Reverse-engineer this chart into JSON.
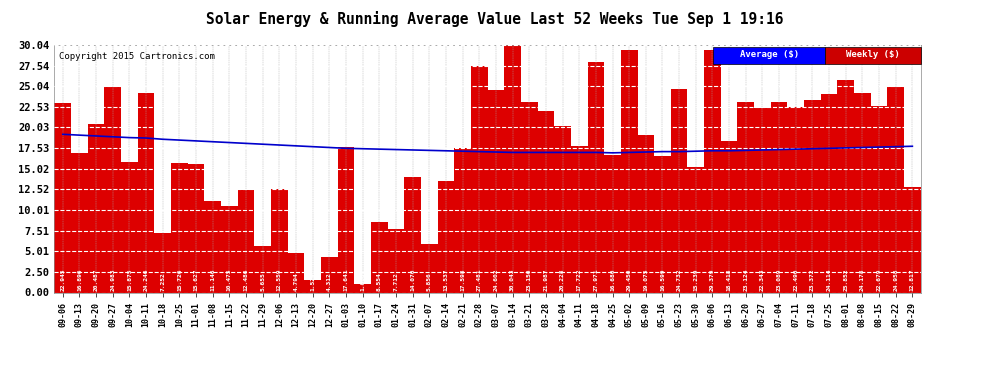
{
  "title": "Solar Energy & Running Average Value Last 52 Weeks Tue Sep 1 19:16",
  "copyright": "Copyright 2015 Cartronics.com",
  "bar_color": "#dd0000",
  "avg_line_color": "#0000cc",
  "background_color": "#ffffff",
  "plot_bg_color": "#ffffff",
  "grid_color": "#aaaaaa",
  "ylim": [
    0,
    30.04
  ],
  "yticks": [
    0.0,
    2.5,
    5.01,
    7.51,
    10.01,
    12.52,
    15.02,
    17.53,
    20.03,
    22.53,
    25.04,
    27.54,
    30.04
  ],
  "legend_avg_color": "#0000cc",
  "legend_weekly_color": "#cc0000",
  "categories": [
    "09-06",
    "09-13",
    "09-20",
    "09-27",
    "10-04",
    "10-11",
    "10-18",
    "10-25",
    "11-01",
    "11-08",
    "11-15",
    "11-22",
    "11-29",
    "12-06",
    "12-13",
    "12-20",
    "12-27",
    "01-03",
    "01-10",
    "01-17",
    "01-24",
    "01-31",
    "02-07",
    "02-14",
    "02-21",
    "02-28",
    "03-07",
    "03-14",
    "03-21",
    "03-28",
    "04-04",
    "04-11",
    "04-18",
    "04-25",
    "05-02",
    "05-09",
    "05-16",
    "05-23",
    "05-30",
    "06-06",
    "06-13",
    "06-20",
    "06-27",
    "07-04",
    "07-11",
    "07-18",
    "07-25",
    "08-01",
    "08-08",
    "08-15",
    "08-22",
    "08-29"
  ],
  "weekly_values": [
    22.945,
    16.896,
    20.487,
    24.983,
    15.875,
    24.246,
    7.252,
    15.726,
    15.627,
    11.146,
    10.475,
    12.486,
    5.655,
    12.559,
    4.794,
    1.529,
    4.312,
    17.641,
    1.006,
    8.554,
    7.712,
    14.07,
    5.856,
    13.537,
    17.598,
    27.481,
    24.602,
    30.043,
    23.15,
    21.987,
    20.228,
    17.722,
    27.971,
    16.68,
    29.45,
    19.075,
    16.599,
    24.732,
    15.239,
    29.379,
    18.418,
    23.124,
    22.343,
    23.089,
    22.49,
    23.372,
    24.114,
    25.852,
    24.178,
    22.679,
    24.958,
    12.817
  ],
  "avg_values": [
    19.2,
    19.1,
    19.0,
    18.9,
    18.8,
    18.75,
    18.6,
    18.5,
    18.4,
    18.3,
    18.2,
    18.1,
    18.0,
    17.9,
    17.8,
    17.7,
    17.6,
    17.5,
    17.45,
    17.4,
    17.35,
    17.3,
    17.25,
    17.2,
    17.15,
    17.1,
    17.05,
    17.0,
    17.0,
    17.0,
    17.0,
    17.0,
    17.0,
    16.95,
    17.0,
    17.05,
    17.1,
    17.1,
    17.15,
    17.2,
    17.2,
    17.25,
    17.3,
    17.35,
    17.4,
    17.45,
    17.5,
    17.55,
    17.6,
    17.65,
    17.7,
    17.75
  ]
}
